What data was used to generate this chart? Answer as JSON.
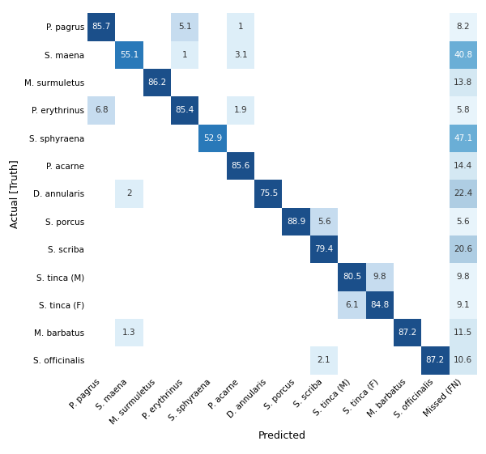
{
  "classes": [
    "P. pagrus",
    "S. maena",
    "M. surmuletus",
    "P. erythrinus",
    "S. sphyraena",
    "P. acarne",
    "D. annularis",
    "S. porcus",
    "S. scriba",
    "S. tinca (M)",
    "S. tinca (F)",
    "M. barbatus",
    "S. officinalis"
  ],
  "x_labels": [
    "P. pagrus",
    "S. maena",
    "M. surmuletus",
    "P. erythrinus",
    "S. sphyraena",
    "P. acarne",
    "D. annularis",
    "S. porcus",
    "S. scriba",
    "S. tinca (M)",
    "S. tinca (F)",
    "M. barbatus",
    "S. officinalis",
    "Missed (FN)"
  ],
  "matrix": [
    [
      85.7,
      0,
      0,
      5.1,
      0,
      1.0,
      0,
      0,
      0,
      0,
      0,
      0,
      0,
      8.2
    ],
    [
      0,
      55.1,
      0,
      1.0,
      0,
      3.1,
      0,
      0,
      0,
      0,
      0,
      0,
      0,
      40.8
    ],
    [
      0,
      0,
      86.2,
      0,
      0,
      0,
      0,
      0,
      0,
      0,
      0,
      0,
      0,
      13.8
    ],
    [
      6.8,
      0,
      0,
      85.4,
      0,
      1.9,
      0,
      0,
      0,
      0,
      0,
      0,
      0,
      5.8
    ],
    [
      0,
      0,
      0,
      0,
      52.9,
      0,
      0,
      0,
      0,
      0,
      0,
      0,
      0,
      47.1
    ],
    [
      0,
      0,
      0,
      0,
      0,
      85.6,
      0,
      0,
      0,
      0,
      0,
      0,
      0,
      14.4
    ],
    [
      0,
      2.0,
      0,
      0,
      0,
      0,
      75.5,
      0,
      0,
      0,
      0,
      0,
      0,
      22.4
    ],
    [
      0,
      0,
      0,
      0,
      0,
      0,
      0,
      88.9,
      5.6,
      0,
      0,
      0,
      0,
      5.6
    ],
    [
      0,
      0,
      0,
      0,
      0,
      0,
      0,
      0,
      79.4,
      0,
      0,
      0,
      0,
      20.6
    ],
    [
      0,
      0,
      0,
      0,
      0,
      0,
      0,
      0,
      0,
      80.5,
      9.8,
      0,
      0,
      9.8
    ],
    [
      0,
      0,
      0,
      0,
      0,
      0,
      0,
      0,
      0,
      6.1,
      84.8,
      0,
      0,
      9.1
    ],
    [
      0,
      1.3,
      0,
      0,
      0,
      0,
      0,
      0,
      0,
      0,
      0,
      87.2,
      0,
      11.5
    ],
    [
      0,
      0,
      0,
      0,
      0,
      0,
      0,
      0,
      2.1,
      0,
      0,
      0,
      87.2,
      10.6
    ]
  ],
  "xlabel": "Predicted",
  "ylabel": "Actual [Truth]",
  "bg_color": "#ffffff",
  "colors": {
    "dark_blue": "#1b4f8a",
    "medium_blue": "#2979b9",
    "light_blue_diag": "#6aaed6",
    "light_blue_cell": "#c6dcef",
    "very_light_blue": "#ddeef8",
    "fn_dark": "#6aaed6",
    "fn_medium": "#aecde3",
    "fn_light": "#d4e8f3",
    "fn_very_light": "#e8f4fb"
  }
}
